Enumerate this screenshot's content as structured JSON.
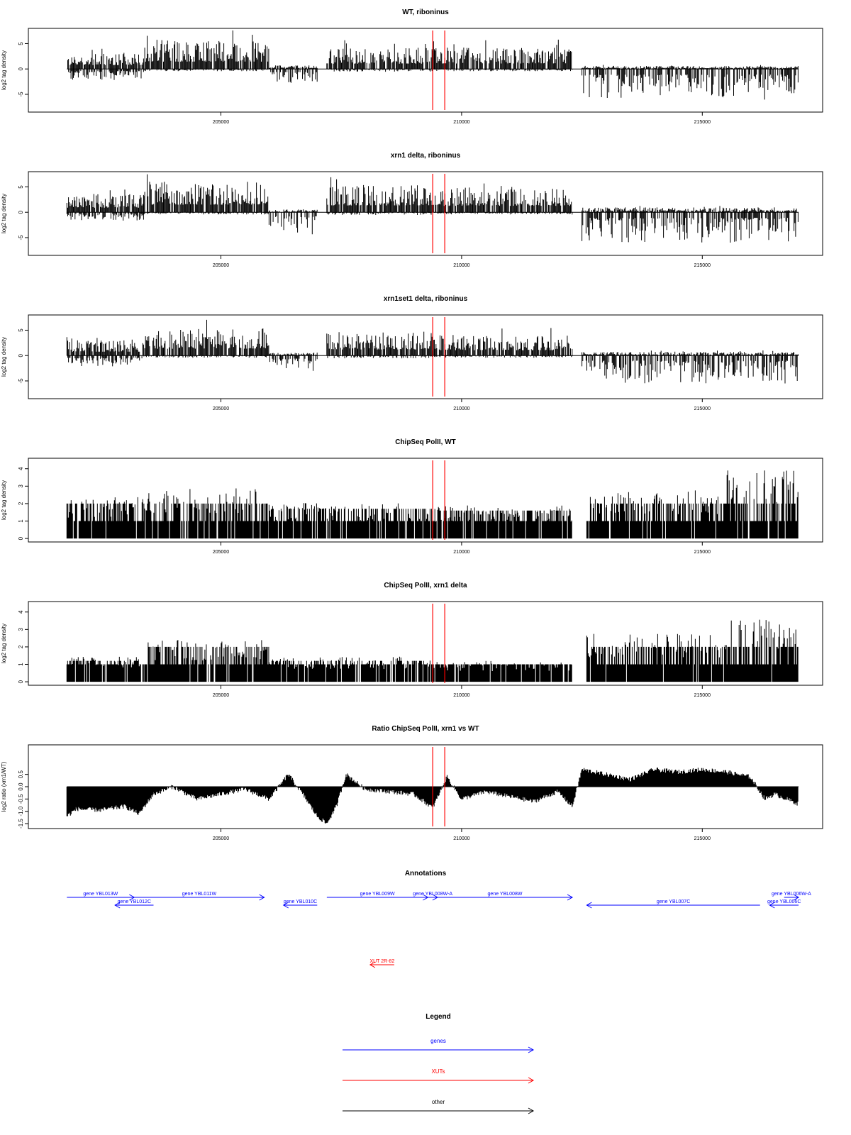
{
  "colors": {
    "data": "#000000",
    "marker": "#ff0000",
    "gene": "#0000ff",
    "xut": "#ff0000",
    "other": "#000000"
  },
  "xaxis": {
    "range": [
      201000,
      217500
    ],
    "ticks": [
      205000,
      210000,
      215000
    ]
  },
  "markers": [
    209400,
    209650
  ],
  "chart_data": [
    {
      "type": "area",
      "title": "WT, riboninus",
      "ylabel": "log2 tag density",
      "ylim": [
        -8.5,
        8
      ],
      "yticks": [
        -5,
        0,
        5
      ],
      "grid": false,
      "segments": [
        {
          "x": [
            201800,
            203400
          ],
          "pos": 2.5,
          "neg": -2.0
        },
        {
          "x": [
            203400,
            206000
          ],
          "pos": 4.8,
          "neg": -0.4
        },
        {
          "x": [
            206000,
            207000
          ],
          "pos": 0.6,
          "neg": -3.0
        },
        {
          "x": [
            207200,
            209400
          ],
          "pos": 3.5,
          "neg": -0.5
        },
        {
          "x": [
            209400,
            212300
          ],
          "pos": 3.6,
          "neg": -0.4
        },
        {
          "x": [
            212500,
            217000
          ],
          "pos": 0.5,
          "neg": -5.5
        }
      ]
    },
    {
      "type": "area",
      "title": "xrn1 delta, riboninus",
      "ylabel": "log2 tag density",
      "ylim": [
        -8.5,
        8
      ],
      "yticks": [
        -5,
        0,
        5
      ],
      "grid": false,
      "segments": [
        {
          "x": [
            201800,
            203400
          ],
          "pos": 3.0,
          "neg": -1.5
        },
        {
          "x": [
            203400,
            206000
          ],
          "pos": 5.0,
          "neg": -0.4
        },
        {
          "x": [
            206000,
            207000
          ],
          "pos": 0.5,
          "neg": -4.0
        },
        {
          "x": [
            207200,
            209400
          ],
          "pos": 4.5,
          "neg": -0.5
        },
        {
          "x": [
            209400,
            212300
          ],
          "pos": 4.2,
          "neg": -0.4
        },
        {
          "x": [
            212500,
            217000
          ],
          "pos": 0.8,
          "neg": -5.5
        }
      ]
    },
    {
      "type": "area",
      "title": "xrn1set1 delta, riboninus",
      "ylabel": "log2 tag density",
      "ylim": [
        -8.5,
        8
      ],
      "yticks": [
        -5,
        0,
        5
      ],
      "grid": false,
      "segments": [
        {
          "x": [
            201800,
            203400
          ],
          "pos": 2.5,
          "neg": -2.0
        },
        {
          "x": [
            203400,
            206000
          ],
          "pos": 4.5,
          "neg": -0.4
        },
        {
          "x": [
            206000,
            207000
          ],
          "pos": 0.5,
          "neg": -3.0
        },
        {
          "x": [
            207200,
            209400
          ],
          "pos": 4.0,
          "neg": -0.5
        },
        {
          "x": [
            209400,
            212300
          ],
          "pos": 3.5,
          "neg": -0.4
        },
        {
          "x": [
            212500,
            217000
          ],
          "pos": 0.6,
          "neg": -5.0
        }
      ]
    },
    {
      "type": "bar",
      "title": "ChipSeq PolII, WT",
      "ylabel": "log2 tag density",
      "ylim": [
        -0.2,
        4.6
      ],
      "yticks": [
        0,
        1,
        2,
        3,
        4
      ],
      "grid": false,
      "segments": [
        {
          "x": [
            201800,
            203400
          ],
          "level": 2.0
        },
        {
          "x": [
            203400,
            206000
          ],
          "level": 2.4
        },
        {
          "x": [
            206000,
            209400
          ],
          "level": 1.7
        },
        {
          "x": [
            209400,
            212300
          ],
          "level": 1.6
        },
        {
          "x": [
            212600,
            215500
          ],
          "level": 2.3
        },
        {
          "x": [
            215500,
            217000
          ],
          "level": 3.3
        }
      ]
    },
    {
      "type": "bar",
      "title": "ChipSeq PolII, xrn1 delta",
      "ylabel": "log2 tag density",
      "ylim": [
        -0.2,
        4.6
      ],
      "yticks": [
        0,
        1,
        2,
        3,
        4
      ],
      "grid": false,
      "segments": [
        {
          "x": [
            201800,
            203400
          ],
          "level": 1.2
        },
        {
          "x": [
            203400,
            206000
          ],
          "level": 2.0
        },
        {
          "x": [
            206000,
            209400
          ],
          "level": 1.2
        },
        {
          "x": [
            209400,
            212300
          ],
          "level": 1.0
        },
        {
          "x": [
            212600,
            215500
          ],
          "level": 2.3
        },
        {
          "x": [
            215500,
            217000
          ],
          "level": 3.0
        }
      ]
    },
    {
      "type": "area",
      "title": "Ratio ChipSeq PolII, xrn1 vs WT",
      "ylabel": "log2 ratio (xrn1/WT)",
      "ylim": [
        -1.7,
        1.7
      ],
      "yticks": [
        -1.5,
        -1.0,
        -0.5,
        0.0,
        0.5
      ],
      "ytick_labels": [
        "-1.5",
        "-1.0",
        "-0.5",
        "0.0",
        "0.5"
      ],
      "grid": false,
      "x": [
        201800,
        202000,
        202500,
        203000,
        203300,
        203600,
        204000,
        204500,
        205000,
        205500,
        206000,
        206400,
        206700,
        207000,
        207200,
        207400,
        207600,
        208000,
        208500,
        209000,
        209400,
        209700,
        210000,
        210500,
        211000,
        211500,
        212000,
        212300,
        212500,
        213000,
        213500,
        214000,
        214500,
        215000,
        215500,
        216000,
        216300,
        216500,
        217000
      ],
      "y": [
        -1.2,
        -0.9,
        -0.95,
        -0.8,
        -1.1,
        -0.3,
        0.0,
        -0.5,
        -0.3,
        -0.1,
        -0.5,
        0.5,
        -0.3,
        -1.2,
        -1.5,
        -0.8,
        0.5,
        -0.1,
        -0.2,
        -0.3,
        -0.85,
        0.4,
        -0.5,
        -0.2,
        -0.4,
        -0.6,
        -0.2,
        -0.8,
        0.7,
        0.5,
        0.3,
        0.7,
        0.6,
        0.7,
        0.6,
        0.4,
        -0.5,
        -0.3,
        -0.7
      ]
    }
  ],
  "annotations": {
    "title": "Annotations",
    "genes": [
      {
        "label": "gene YBL013W",
        "start": 201800,
        "end": 203200,
        "row": 0,
        "dir": "right"
      },
      {
        "label": "gene YBL012C",
        "start": 203600,
        "end": 202800,
        "row": 1,
        "dir": "left"
      },
      {
        "label": "gene YBL011W",
        "start": 203200,
        "end": 205900,
        "row": 0,
        "dir": "right"
      },
      {
        "label": "gene YBL010C",
        "start": 207000,
        "end": 206300,
        "row": 1,
        "dir": "left"
      },
      {
        "label": "gene YBL009W",
        "start": 207200,
        "end": 209300,
        "row": 0,
        "dir": "right"
      },
      {
        "label": "gene YBL008W-A",
        "start": 209300,
        "end": 209500,
        "row": 0,
        "dir": "right"
      },
      {
        "label": "gene YBL008W",
        "start": 209500,
        "end": 212300,
        "row": 0,
        "dir": "right"
      },
      {
        "label": "gene YBL007C",
        "start": 216200,
        "end": 212600,
        "row": 1,
        "dir": "left"
      },
      {
        "label": "gene YBL006W-A",
        "start": 216700,
        "end": 217000,
        "row": 0,
        "dir": "right"
      },
      {
        "label": "gene YBL006C",
        "start": 217000,
        "end": 216400,
        "row": 1,
        "dir": "left"
      }
    ],
    "xuts": [
      {
        "label": "XUT 2R-82",
        "start": 208600,
        "end": 208100,
        "dir": "left"
      }
    ]
  },
  "legend": {
    "title": "Legend",
    "items": [
      {
        "label": "genes",
        "color": "#0000ff"
      },
      {
        "label": "XUTs",
        "color": "#ff0000"
      },
      {
        "label": "other",
        "color": "#000000"
      }
    ]
  }
}
